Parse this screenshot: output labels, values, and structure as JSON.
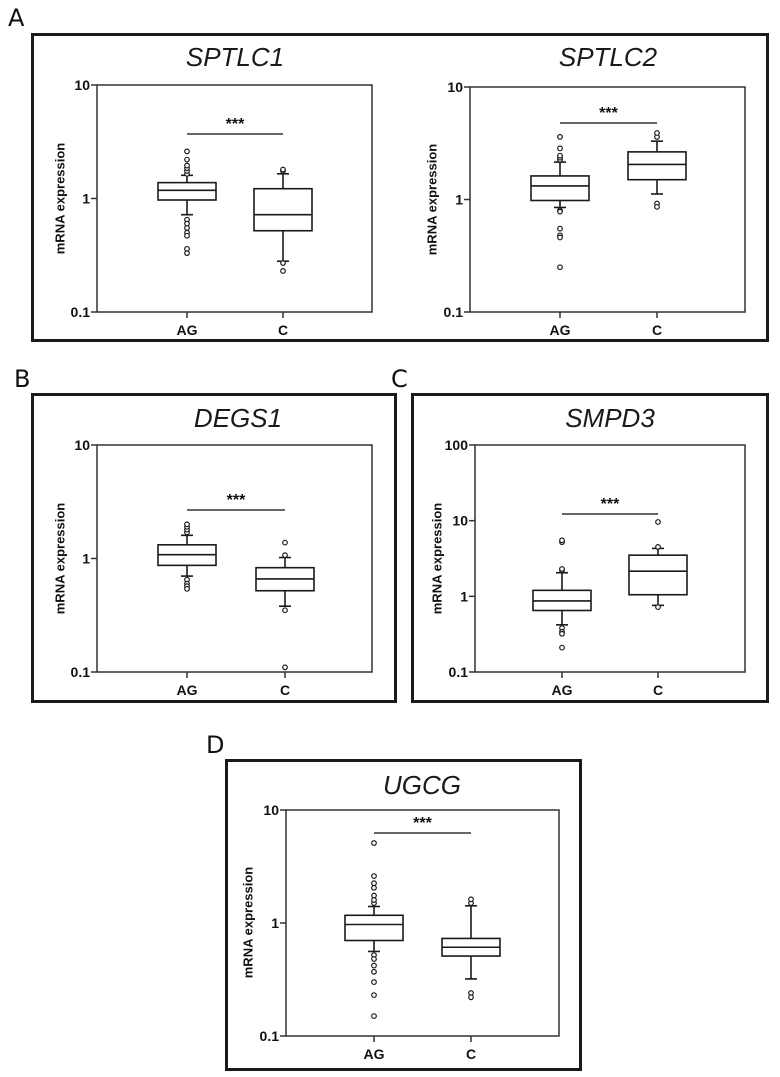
{
  "figure": {
    "panels": [
      {
        "letter": "A"
      },
      {
        "letter": "B"
      },
      {
        "letter": "C"
      },
      {
        "letter": "D"
      }
    ]
  },
  "chart_data": [
    {
      "panel": "A",
      "type": "boxplot",
      "title": "SPTLC1",
      "ylabel": "mRNA expression",
      "yscale": "log",
      "ylim": [
        0.1,
        10
      ],
      "yticks": [
        "0.1",
        "1",
        "10"
      ],
      "categories": [
        "AG",
        "C"
      ],
      "significance": "***",
      "boxes": [
        {
          "name": "AG",
          "whisker_low": 0.72,
          "q1": 0.97,
          "median": 1.18,
          "q3": 1.38,
          "whisker_high": 1.6,
          "outliers_high": [
            1.65,
            1.75,
            1.85,
            1.95,
            2.2,
            2.6
          ],
          "outliers_low": [
            0.65,
            0.6,
            0.55,
            0.5,
            0.47,
            0.36,
            0.33
          ]
        },
        {
          "name": "C",
          "whisker_low": 0.28,
          "q1": 0.52,
          "median": 0.72,
          "q3": 1.22,
          "whisker_high": 1.65,
          "outliers_high": [
            1.75,
            1.8
          ],
          "outliers_low": [
            0.27,
            0.23
          ]
        }
      ]
    },
    {
      "panel": "A",
      "type": "boxplot",
      "title": "SPTLC2",
      "ylabel": "mRNA expression",
      "yscale": "log",
      "ylim": [
        0.1,
        10
      ],
      "yticks": [
        "0.1",
        "1",
        "10"
      ],
      "categories": [
        "AG",
        "C"
      ],
      "significance": "***",
      "boxes": [
        {
          "name": "AG",
          "whisker_low": 0.85,
          "q1": 0.98,
          "median": 1.32,
          "q3": 1.62,
          "whisker_high": 2.15,
          "outliers_high": [
            2.25,
            2.35,
            2.45,
            2.85,
            3.6
          ],
          "outliers_low": [
            0.8,
            0.78,
            0.55,
            0.48,
            0.46,
            0.25
          ]
        },
        {
          "name": "C",
          "whisker_low": 1.12,
          "q1": 1.5,
          "median": 2.05,
          "q3": 2.65,
          "whisker_high": 3.3,
          "outliers_high": [
            3.6,
            3.9
          ],
          "outliers_low": [
            0.92,
            0.86
          ]
        }
      ]
    },
    {
      "panel": "B",
      "type": "boxplot",
      "title": "DEGS1",
      "ylabel": "mRNA expression",
      "yscale": "log",
      "ylim": [
        0.1,
        10
      ],
      "yticks": [
        "0.1",
        "1",
        "10"
      ],
      "categories": [
        "AG",
        "C"
      ],
      "significance": "***",
      "boxes": [
        {
          "name": "AG",
          "whisker_low": 0.7,
          "q1": 0.87,
          "median": 1.08,
          "q3": 1.32,
          "whisker_high": 1.6,
          "outliers_high": [
            1.7,
            1.8,
            1.9,
            2.0
          ],
          "outliers_low": [
            0.65,
            0.6,
            0.57,
            0.54
          ]
        },
        {
          "name": "C",
          "whisker_low": 0.38,
          "q1": 0.52,
          "median": 0.66,
          "q3": 0.83,
          "whisker_high": 1.02,
          "outliers_high": [
            1.07,
            1.38
          ],
          "outliers_low": [
            0.35,
            0.11
          ]
        }
      ]
    },
    {
      "panel": "C",
      "type": "boxplot",
      "title": "SMPD3",
      "ylabel": "mRNA expression",
      "yscale": "log",
      "ylim": [
        0.1,
        100
      ],
      "yticks": [
        "0.1",
        "1",
        "10",
        "100"
      ],
      "categories": [
        "AG",
        "C"
      ],
      "significance": "***",
      "boxes": [
        {
          "name": "AG",
          "whisker_low": 0.42,
          "q1": 0.65,
          "median": 0.87,
          "q3": 1.2,
          "whisker_high": 2.05,
          "outliers_high": [
            2.2,
            2.3,
            5.2,
            5.5
          ],
          "outliers_low": [
            0.38,
            0.34,
            0.32,
            0.21
          ]
        },
        {
          "name": "C",
          "whisker_low": 0.76,
          "q1": 1.05,
          "median": 2.15,
          "q3": 3.5,
          "whisker_high": 4.3,
          "outliers_high": [
            4.5,
            9.6
          ],
          "outliers_low": [
            0.72
          ]
        }
      ]
    },
    {
      "panel": "D",
      "type": "boxplot",
      "title": "UGCG",
      "ylabel": "mRNA expression",
      "yscale": "log",
      "ylim": [
        0.1,
        10
      ],
      "yticks": [
        "0.1",
        "1",
        "10"
      ],
      "categories": [
        "AG",
        "C"
      ],
      "significance": "***",
      "boxes": [
        {
          "name": "AG",
          "whisker_low": 0.56,
          "q1": 0.7,
          "median": 0.97,
          "q3": 1.17,
          "whisker_high": 1.4,
          "outliers_high": [
            1.5,
            1.6,
            1.75,
            2.05,
            2.25,
            2.6,
            5.1
          ],
          "outliers_low": [
            0.52,
            0.48,
            0.42,
            0.37,
            0.3,
            0.23,
            0.15
          ]
        },
        {
          "name": "C",
          "whisker_low": 0.32,
          "q1": 0.51,
          "median": 0.61,
          "q3": 0.73,
          "whisker_high": 1.42,
          "outliers_high": [
            1.5,
            1.62
          ],
          "outliers_low": [
            0.24,
            0.22
          ]
        }
      ]
    }
  ]
}
